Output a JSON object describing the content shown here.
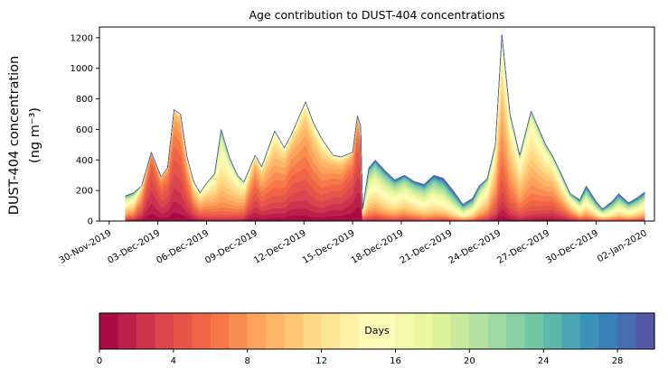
{
  "chart": {
    "title": "Age contribution to DUST-404 concentrations",
    "ylabel_line1": "DUST-404 concentration",
    "ylabel_line2": "(ng m⁻³)",
    "colorbar_label": "Days"
  },
  "chart_data": {
    "type": "area",
    "subtype": "stacked age-resolved contributions (stackplot), youngest age at bottom",
    "title": "Age contribution to DUST-404 concentrations",
    "ylabel": "DUST-404 concentration (ng m⁻³)",
    "xlabel": "",
    "ylim": [
      0,
      1270
    ],
    "xlim_days": [
      -0.6,
      33.6
    ],
    "grid": false,
    "y_ticks": [
      0,
      200,
      400,
      600,
      800,
      1000,
      1200
    ],
    "x_ticks": [
      {
        "day": 0,
        "label": "30-Nov-2019"
      },
      {
        "day": 3,
        "label": "03-Dec-2019"
      },
      {
        "day": 6,
        "label": "06-Dec-2019"
      },
      {
        "day": 9,
        "label": "09-Dec-2019"
      },
      {
        "day": 12,
        "label": "12-Dec-2019"
      },
      {
        "day": 15,
        "label": "15-Dec-2019"
      },
      {
        "day": 18,
        "label": "18-Dec-2019"
      },
      {
        "day": 21,
        "label": "21-Dec-2019"
      },
      {
        "day": 24,
        "label": "24-Dec-2019"
      },
      {
        "day": 27,
        "label": "27-Dec-2019"
      },
      {
        "day": 30,
        "label": "30-Dec-2019"
      },
      {
        "day": 33,
        "label": "02-Jan-2020"
      }
    ],
    "x_unit": "days since 30-Nov-2019",
    "n_age_bins": 30,
    "age_bin_unit": "days",
    "colorbar": {
      "label": "Days",
      "min": 0,
      "max": 30,
      "ticks": [
        0,
        4,
        8,
        12,
        16,
        20,
        24,
        28
      ],
      "orientation": "horizontal"
    },
    "colormap_stops": [
      [
        0.0,
        "#9e0142"
      ],
      [
        0.1,
        "#d53e4f"
      ],
      [
        0.2,
        "#f46d43"
      ],
      [
        0.3,
        "#fdae61"
      ],
      [
        0.4,
        "#fee08b"
      ],
      [
        0.5,
        "#ffffbf"
      ],
      [
        0.6,
        "#e6f598"
      ],
      [
        0.7,
        "#abdda4"
      ],
      [
        0.8,
        "#66c2a5"
      ],
      [
        0.9,
        "#3288bd"
      ],
      [
        1.0,
        "#5e4fa2"
      ]
    ],
    "x": [
      1.0,
      1.5,
      2.0,
      2.6,
      3.2,
      3.6,
      4.0,
      4.4,
      4.8,
      5.2,
      5.6,
      6.0,
      6.5,
      6.9,
      7.4,
      7.9,
      8.3,
      9.0,
      9.4,
      10.2,
      10.8,
      11.2,
      12.1,
      12.6,
      13.1,
      13.8,
      14.3,
      15.0,
      15.3,
      15.5,
      15.62,
      16.0,
      16.4,
      17.0,
      17.6,
      18.2,
      18.8,
      19.4,
      20.0,
      20.6,
      21.2,
      21.8,
      22.4,
      22.8,
      23.3,
      23.8,
      24.2,
      24.7,
      25.3,
      26.0,
      26.9,
      27.3,
      27.9,
      28.4,
      29.0,
      29.4,
      30.0,
      30.4,
      31.0,
      31.4,
      32.0,
      32.5,
      33.0
    ],
    "total": [
      165,
      185,
      230,
      450,
      290,
      350,
      730,
      700,
      420,
      260,
      185,
      250,
      310,
      600,
      420,
      300,
      255,
      430,
      355,
      590,
      480,
      560,
      780,
      640,
      540,
      430,
      420,
      450,
      690,
      620,
      80,
      350,
      400,
      330,
      270,
      300,
      260,
      240,
      300,
      280,
      200,
      110,
      150,
      230,
      280,
      500,
      1220,
      700,
      430,
      720,
      500,
      430,
      300,
      180,
      140,
      230,
      130,
      80,
      130,
      180,
      120,
      150,
      190
    ],
    "age_mode": [
      12,
      11,
      6,
      3,
      4,
      4,
      4,
      4.5,
      5,
      7,
      8,
      9,
      10,
      12,
      11,
      10,
      9,
      5,
      6,
      7,
      6,
      5,
      6,
      6.5,
      6.5,
      4,
      4,
      2.5,
      2,
      2,
      10,
      14,
      14,
      15,
      15,
      14,
      15,
      16,
      16,
      17,
      18,
      18,
      17,
      14,
      12,
      9,
      8,
      9,
      10,
      10,
      9,
      8,
      9,
      10,
      14,
      15,
      16,
      16,
      17,
      17,
      16,
      16,
      15
    ],
    "age_spread": [
      7,
      7,
      4,
      2.5,
      3,
      3,
      3.5,
      3.5,
      4,
      5,
      5,
      5,
      5,
      5,
      5,
      5,
      5,
      4,
      4.5,
      5,
      4.5,
      4.5,
      4.5,
      4.5,
      5,
      5,
      5,
      4,
      4,
      4,
      6,
      7,
      7,
      7,
      7,
      7,
      7,
      7,
      7,
      8,
      8,
      8,
      8,
      7,
      6,
      5,
      5,
      5,
      5,
      5,
      6,
      6,
      7,
      7,
      8,
      8,
      8,
      8,
      8,
      8,
      8,
      8,
      8
    ]
  }
}
